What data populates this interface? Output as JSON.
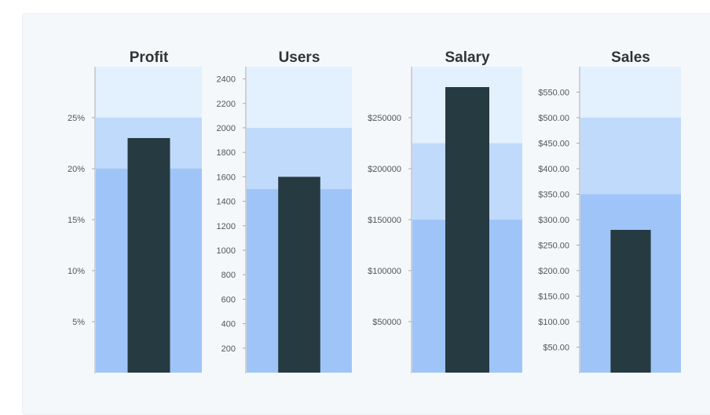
{
  "colors": {
    "band_light": "#e3f0fd",
    "band_mid": "#c0dafb",
    "band_dark": "#9fc5f8",
    "measure": "#263a41",
    "axis": "#aaaaaa"
  },
  "chart_data": [
    {
      "type": "bar",
      "variant": "bullet",
      "title": "Profit",
      "value": 23,
      "ranges": [
        20,
        25,
        30
      ],
      "ylim": [
        0,
        30
      ],
      "ticks": [
        5,
        10,
        15,
        20,
        25
      ],
      "tick_labels": [
        "5%",
        "10%",
        "15%",
        "20%",
        "25%"
      ]
    },
    {
      "type": "bar",
      "variant": "bullet",
      "title": "Users",
      "value": 1600,
      "ranges": [
        1500,
        2000,
        2500
      ],
      "ylim": [
        0,
        2500
      ],
      "ticks": [
        200,
        400,
        600,
        800,
        1000,
        1200,
        1400,
        1600,
        1800,
        2000,
        2200,
        2400
      ],
      "tick_labels": [
        "200",
        "400",
        "600",
        "800",
        "1000",
        "1200",
        "1400",
        "1600",
        "1800",
        "2000",
        "2200",
        "2400"
      ]
    },
    {
      "type": "bar",
      "variant": "bullet",
      "title": "Salary",
      "value": 280000,
      "ranges": [
        150000,
        225000,
        300000
      ],
      "ylim": [
        0,
        300000
      ],
      "ticks": [
        50000,
        100000,
        150000,
        200000,
        250000
      ],
      "tick_labels": [
        "$50000",
        "$100000",
        "$150000",
        "$200000",
        "$250000"
      ]
    },
    {
      "type": "bar",
      "variant": "bullet",
      "title": "Sales",
      "value": 280,
      "ranges": [
        350,
        500,
        600
      ],
      "ylim": [
        0,
        600
      ],
      "ticks": [
        50,
        100,
        150,
        200,
        250,
        300,
        350,
        400,
        450,
        500,
        550
      ],
      "tick_labels": [
        "$50.00",
        "$100.00",
        "$150.00",
        "$200.00",
        "$250.00",
        "$300.00",
        "$350.00",
        "$400.00",
        "$450.00",
        "$500.00",
        "$550.00"
      ]
    }
  ]
}
